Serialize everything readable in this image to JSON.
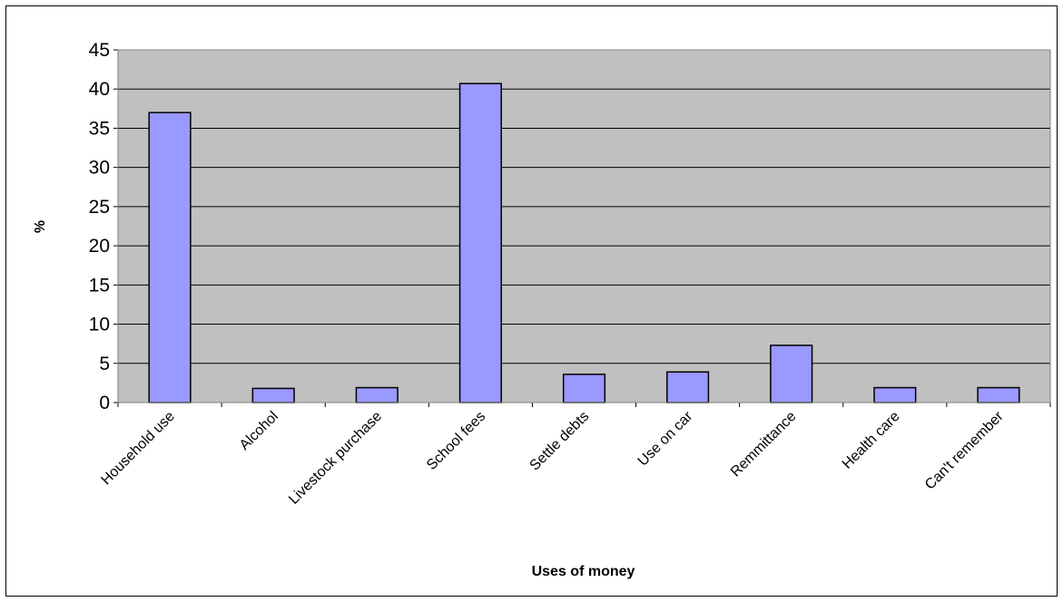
{
  "chart_data": {
    "type": "bar",
    "title": "",
    "xlabel": "Uses of money",
    "ylabel": "%",
    "ylim": [
      0,
      45
    ],
    "ytick_step": 5,
    "grid": true,
    "categories": [
      "Household use",
      "Alcohol",
      "Livestock purchase",
      "School fees",
      "Settle debts",
      "Use on car",
      "Remmittance",
      "Health care",
      "Can't remember"
    ],
    "values": [
      37,
      1.8,
      1.9,
      40.7,
      3.6,
      3.9,
      7.3,
      1.9,
      1.9
    ],
    "colors": {
      "plot_background": "#c0c0c0",
      "bar_fill": "#9999ff",
      "bar_stroke": "#000000",
      "gridline": "#000000"
    }
  }
}
